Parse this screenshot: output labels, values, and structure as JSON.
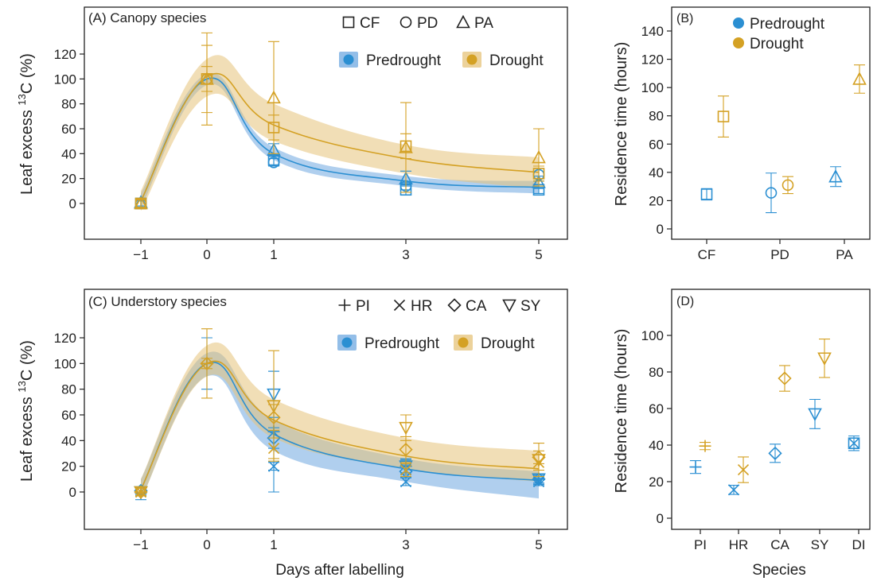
{
  "colors": {
    "predrought": "#2B8FD2",
    "drought": "#D4A124",
    "predrought_band": "#6FA8E0",
    "drought_band": "#E6C37A",
    "axis": "#222222"
  },
  "shared": {
    "xlabel": "Days after labelling",
    "ylabel_left": "Leaf excess 13C (%)",
    "ylabel_right": "Residence time (hours)",
    "xlabel_right": "Species"
  },
  "chart_data": [
    {
      "id": "A",
      "type": "line",
      "title": "(A) Canopy species",
      "xlabel": "",
      "ylabel": "Leaf excess 13C (%)",
      "xticks": [
        -1,
        0,
        1,
        3,
        5
      ],
      "yticks": [
        0,
        20,
        40,
        60,
        80,
        100,
        120
      ],
      "xlim": [
        -2,
        6
      ],
      "ylim": [
        -28,
        158
      ],
      "shape_legend": [
        {
          "label": "CF",
          "marker": "square"
        },
        {
          "label": "PD",
          "marker": "circle"
        },
        {
          "label": "PA",
          "marker": "triangle-up"
        }
      ],
      "color_legend": [
        "Predrought",
        "Drought"
      ],
      "fit_x": [
        -1,
        0,
        1,
        3,
        5
      ],
      "series": [
        {
          "name": "Predrought",
          "color_key": "predrought",
          "fit": {
            "center": [
              2,
              100,
              40,
              18,
              13
            ],
            "upper": [
              8,
              104,
              45,
              22,
              18
            ],
            "lower": [
              -4,
              95,
              35,
              14,
              8
            ]
          },
          "points": [
            {
              "species": "CF",
              "x": -1,
              "y": 0,
              "err": 3
            },
            {
              "species": "CF",
              "x": 1,
              "y": 35,
              "err": 4
            },
            {
              "species": "CF",
              "x": 3,
              "y": 11,
              "err": 4
            },
            {
              "species": "CF",
              "x": 5,
              "y": 11,
              "err": 3
            },
            {
              "species": "PD",
              "x": -1,
              "y": 0,
              "err": 2
            },
            {
              "species": "PD",
              "x": 1,
              "y": 33,
              "err": 3
            },
            {
              "species": "PD",
              "x": 3,
              "y": 14,
              "err": 3
            },
            {
              "species": "PD",
              "x": 5,
              "y": 23,
              "err": 5
            },
            {
              "species": "PA",
              "x": -1,
              "y": 1,
              "err": 3
            },
            {
              "species": "PA",
              "x": 1,
              "y": 43,
              "err": 5
            },
            {
              "species": "PA",
              "x": 3,
              "y": 20,
              "err": 6
            },
            {
              "species": "PA",
              "x": 5,
              "y": 17,
              "err": 5
            }
          ]
        },
        {
          "name": "Drought",
          "color_key": "drought",
          "fit": {
            "center": [
              2,
              102,
              63,
              36,
              25
            ],
            "upper": [
              10,
              116,
              80,
              47,
              37
            ],
            "lower": [
              -6,
              86,
              50,
              24,
              12
            ]
          },
          "points": [
            {
              "species": "CF",
              "x": -1,
              "y": 0,
              "err": 4
            },
            {
              "species": "CF",
              "x": 0,
              "y": 100,
              "err": 27
            },
            {
              "species": "CF",
              "x": 1,
              "y": 61,
              "err": 10
            },
            {
              "species": "CF",
              "x": 3,
              "y": 46,
              "err": 10
            },
            {
              "species": "CF",
              "x": 5,
              "y": 24,
              "err": 6
            },
            {
              "species": "PD",
              "x": -1,
              "y": 0,
              "err": 3
            },
            {
              "species": "PD",
              "x": 0,
              "y": 100,
              "err": 10
            },
            {
              "species": "PA",
              "x": -1,
              "y": 0,
              "err": 3
            },
            {
              "species": "PA",
              "x": 0,
              "y": 100,
              "err": 37
            },
            {
              "species": "PA",
              "x": 1,
              "y": 85,
              "err": 45
            },
            {
              "species": "PA",
              "x": 3,
              "y": 45,
              "err": 36
            },
            {
              "species": "PA",
              "x": 5,
              "y": 37,
              "err": 23
            }
          ]
        }
      ]
    },
    {
      "id": "B",
      "type": "scatter",
      "title": "(B)",
      "xlabel": "",
      "ylabel": "Residence time (hours)",
      "categories": [
        "CF",
        "PD",
        "PA"
      ],
      "yticks": [
        0,
        20,
        40,
        60,
        80,
        100,
        120,
        140
      ],
      "ylim": [
        -6,
        150
      ],
      "color_legend": [
        "Predrought",
        "Drought"
      ],
      "series": [
        {
          "name": "Predrought",
          "color_key": "predrought",
          "points": [
            {
              "category": "CF",
              "marker": "square",
              "y": 24.5,
              "err": 4
            },
            {
              "category": "PD",
              "marker": "circle",
              "y": 25.5,
              "err": 14
            },
            {
              "category": "PA",
              "marker": "triangle-up",
              "y": 37,
              "err": 7
            }
          ]
        },
        {
          "name": "Drought",
          "color_key": "drought",
          "points": [
            {
              "category": "CF",
              "marker": "square",
              "y": 79.5,
              "err": 14.5
            },
            {
              "category": "PD",
              "marker": "circle",
              "y": 31,
              "err": 6
            },
            {
              "category": "PA",
              "marker": "triangle-up",
              "y": 106,
              "err": 10
            }
          ]
        }
      ]
    },
    {
      "id": "C",
      "type": "line",
      "title": "(C) Understory species",
      "xlabel": "Days after labelling",
      "ylabel": "Leaf excess 13C (%)",
      "xticks": [
        -1,
        0,
        1,
        3,
        5
      ],
      "yticks": [
        0,
        20,
        40,
        60,
        80,
        100,
        120
      ],
      "xlim": [
        -2,
        6
      ],
      "ylim": [
        -28,
        158
      ],
      "shape_legend": [
        {
          "label": "PI",
          "marker": "plus"
        },
        {
          "label": "HR",
          "marker": "cross"
        },
        {
          "label": "CA",
          "marker": "diamond"
        },
        {
          "label": "SY",
          "marker": "triangle-down"
        }
      ],
      "color_legend": [
        "Predrought",
        "Drought"
      ],
      "fit_x": [
        -1,
        0,
        1,
        3,
        5
      ],
      "series": [
        {
          "name": "Predrought",
          "color_key": "predrought",
          "fit": {
            "center": [
              2,
              100,
              45,
              18,
              9
            ],
            "upper": [
              10,
              108,
              56,
              26,
              16
            ],
            "lower": [
              -6,
              90,
              32,
              8,
              -5
            ]
          },
          "points": [
            {
              "species": "PI",
              "x": -1,
              "y": -1,
              "err": 5
            },
            {
              "species": "PI",
              "x": 0,
              "y": 100,
              "err": 20
            },
            {
              "species": "PI",
              "x": 1,
              "y": 47,
              "err": 47
            },
            {
              "species": "PI",
              "x": 3,
              "y": 20,
              "err": 6
            },
            {
              "species": "PI",
              "x": 5,
              "y": 10,
              "err": 4
            },
            {
              "species": "HR",
              "x": -1,
              "y": 0,
              "err": 3
            },
            {
              "species": "HR",
              "x": 1,
              "y": 20,
              "err": 3
            },
            {
              "species": "HR",
              "x": 3,
              "y": 8,
              "err": 3
            },
            {
              "species": "HR",
              "x": 5,
              "y": 8,
              "err": 3
            },
            {
              "species": "CA",
              "x": -1,
              "y": 1,
              "err": 3
            },
            {
              "species": "CA",
              "x": 1,
              "y": 42,
              "err": 8
            },
            {
              "species": "CA",
              "x": 3,
              "y": 16,
              "err": 5
            },
            {
              "species": "CA",
              "x": 5,
              "y": 10,
              "err": 3
            },
            {
              "species": "SY",
              "x": -1,
              "y": 0,
              "err": 3
            },
            {
              "species": "SY",
              "x": 1,
              "y": 76,
              "err": 18
            },
            {
              "species": "SY",
              "x": 3,
              "y": 20,
              "err": 5
            },
            {
              "species": "SY",
              "x": 5,
              "y": 10,
              "err": 4
            }
          ]
        },
        {
          "name": "Drought",
          "color_key": "drought",
          "fit": {
            "center": [
              2,
              100,
              56,
              28,
              18
            ],
            "upper": [
              10,
              114,
              72,
              42,
              32
            ],
            "lower": [
              -6,
              90,
              42,
              18,
              8
            ]
          },
          "points": [
            {
              "species": "PI",
              "x": -1,
              "y": 0,
              "err": 3
            },
            {
              "species": "PI",
              "x": 0,
              "y": 100,
              "err": 27
            },
            {
              "species": "HR",
              "x": -1,
              "y": 0,
              "err": 3
            },
            {
              "species": "HR",
              "x": 1,
              "y": 34,
              "err": 8
            },
            {
              "species": "HR",
              "x": 3,
              "y": 17,
              "err": 5
            },
            {
              "species": "HR",
              "x": 5,
              "y": 23,
              "err": 6
            },
            {
              "species": "CA",
              "x": -1,
              "y": 0,
              "err": 3
            },
            {
              "species": "CA",
              "x": 0,
              "y": 100,
              "err": 4
            },
            {
              "species": "CA",
              "x": 1,
              "y": 58,
              "err": 10
            },
            {
              "species": "CA",
              "x": 3,
              "y": 33,
              "err": 10
            },
            {
              "species": "CA",
              "x": 5,
              "y": 27,
              "err": 5
            },
            {
              "species": "SY",
              "x": -1,
              "y": 0,
              "err": 3
            },
            {
              "species": "SY",
              "x": 1,
              "y": 67,
              "err": 43
            },
            {
              "species": "SY",
              "x": 3,
              "y": 50,
              "err": 10
            },
            {
              "species": "SY",
              "x": 5,
              "y": 25,
              "err": 13
            }
          ]
        }
      ]
    },
    {
      "id": "D",
      "type": "scatter",
      "title": "(D)",
      "xlabel": "Species",
      "ylabel": "Residence time (hours)",
      "categories": [
        "PI",
        "HR",
        "CA",
        "SY",
        "DI"
      ],
      "yticks": [
        0,
        20,
        40,
        60,
        80,
        100
      ],
      "ylim": [
        -6,
        112
      ],
      "series": [
        {
          "name": "Predrought",
          "color_key": "predrought",
          "points": [
            {
              "category": "PI",
              "marker": "plus",
              "y": 28,
              "err": 3.5
            },
            {
              "category": "HR",
              "marker": "cross",
              "y": 15.5,
              "err": 2.5
            },
            {
              "category": "CA",
              "marker": "diamond",
              "y": 35.5,
              "err": 5
            },
            {
              "category": "SY",
              "marker": "triangle-down",
              "y": 57,
              "err": 8
            },
            {
              "category": "DI",
              "marker": "square-x",
              "y": 41,
              "err": 4
            }
          ]
        },
        {
          "name": "Drought",
          "color_key": "drought",
          "points": [
            {
              "category": "PI",
              "marker": "plus",
              "y": 39.5,
              "err": 2
            },
            {
              "category": "HR",
              "marker": "cross",
              "y": 26.5,
              "err": 7
            },
            {
              "category": "CA",
              "marker": "diamond",
              "y": 76.5,
              "err": 7
            },
            {
              "category": "SY",
              "marker": "triangle-down",
              "y": 87.5,
              "err": 10.5
            }
          ]
        }
      ]
    }
  ]
}
